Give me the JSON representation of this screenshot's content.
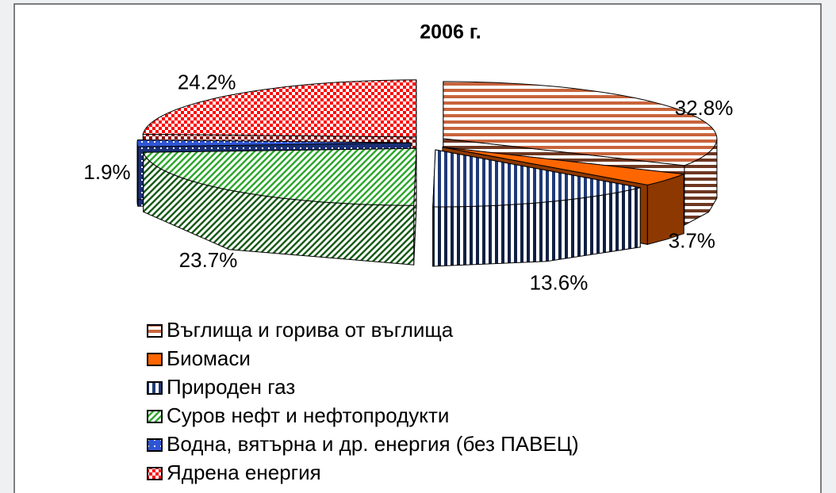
{
  "chart_data": {
    "type": "pie3d",
    "title": "2006 г.",
    "categories": [
      "Въглища и горива от въглища",
      "Биомаси",
      "Природен газ",
      "Суров нефт и нефтопродукти",
      "Водна, вятърна и др. енергия (без ПАВЕЦ)",
      "Ядрена енергия"
    ],
    "values": [
      32.8,
      3.7,
      13.6,
      23.7,
      1.9,
      24.2
    ],
    "value_labels": [
      "32.8%",
      "3.7%",
      "13.6%",
      "23.7%",
      "1.9%",
      "24.2%"
    ],
    "colors": [
      "#c8643c",
      "#ff6600",
      "#1f3a78",
      "#2ea82e",
      "#2f55d4",
      "#ff0000"
    ],
    "patterns": [
      "horizontal",
      "solid",
      "vertical",
      "diagonal",
      "dots",
      "checker"
    ],
    "legend": "bottom"
  }
}
